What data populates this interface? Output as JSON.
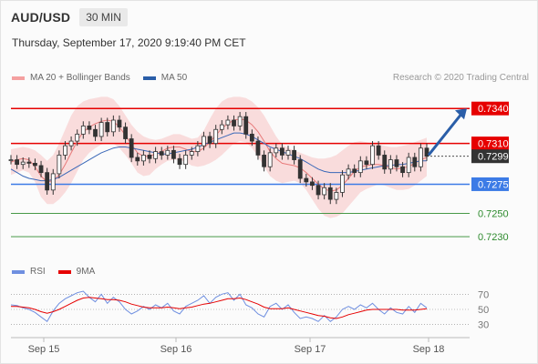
{
  "header": {
    "pair": "AUD/USD",
    "timeframe": "30 MIN"
  },
  "datetime": "Thursday, September 17, 2020 9:19:40 PM CET",
  "credit": "Research © 2020 Trading Central",
  "colors": {
    "bb_band": "#f8d6d6",
    "ma20": "#e87a7a",
    "ma50": "#3a68b8",
    "candle": "#333333",
    "resistance": "#e60000",
    "support": "#3c7be6",
    "target_green": "#2e8b2e",
    "arrow": "#2a5ea8",
    "rsi": "#6f8fe0",
    "rsi_ma": "#e60000"
  },
  "chart_data": [
    {
      "type": "candlestick",
      "title": "AUD/USD 30 MIN",
      "legend": [
        "MA 20 + Bollinger Bands",
        "MA 50"
      ],
      "x_ticks": [
        "Sep 15",
        "Sep 16",
        "Sep 17",
        "Sep 18"
      ],
      "ylim": [
        0.7216,
        0.7355
      ],
      "levels": [
        {
          "label": "0.7340",
          "value": 0.734,
          "kind": "resistance"
        },
        {
          "label": "0.7310",
          "value": 0.731,
          "kind": "resistance"
        },
        {
          "label": "0.7299",
          "value": 0.7299,
          "kind": "last_price"
        },
        {
          "label": "0.7275",
          "value": 0.7275,
          "kind": "support"
        },
        {
          "label": "0.7250",
          "value": 0.725,
          "kind": "target"
        },
        {
          "label": "0.7230",
          "value": 0.723,
          "kind": "target"
        }
      ],
      "arrow": {
        "from": 0.73,
        "to": 0.734,
        "direction": "up"
      },
      "series": [
        {
          "name": "MA 20 + Bollinger Bands",
          "values": [
            0.7294,
            0.7296,
            0.7297,
            0.7296,
            0.729,
            0.7282,
            0.7277,
            0.7278,
            0.7283,
            0.7292,
            0.7302,
            0.7312,
            0.732,
            0.7324,
            0.7327,
            0.7329,
            0.733,
            0.7329,
            0.7324,
            0.7317,
            0.7309,
            0.7302,
            0.7299,
            0.7299,
            0.7301,
            0.7303,
            0.7306,
            0.7307,
            0.7307,
            0.7305,
            0.7303,
            0.7303,
            0.7306,
            0.7311,
            0.7317,
            0.7323,
            0.7327,
            0.733,
            0.7331,
            0.733,
            0.7326,
            0.732,
            0.7312,
            0.7303,
            0.7297,
            0.7293,
            0.7292,
            0.7291,
            0.7289,
            0.7285,
            0.728,
            0.7275,
            0.7271,
            0.7269,
            0.727,
            0.7274,
            0.728,
            0.7286,
            0.729,
            0.7291,
            0.7292,
            0.7292,
            0.7291,
            0.7289,
            0.7288,
            0.7289,
            0.729,
            0.7293,
            0.7296,
            0.7298
          ]
        },
        {
          "name": "MA 50",
          "values": [
            0.7288,
            0.7285,
            0.7282,
            0.728,
            0.7279,
            0.7278,
            0.7278,
            0.7279,
            0.7281,
            0.7284,
            0.7287,
            0.729,
            0.7293,
            0.7296,
            0.7299,
            0.7302,
            0.7304,
            0.7306,
            0.7307,
            0.7307,
            0.7306,
            0.7305,
            0.7304,
            0.7303,
            0.7302,
            0.7301,
            0.7301,
            0.7302,
            0.7303,
            0.7304,
            0.7305,
            0.7307,
            0.7309,
            0.7311,
            0.7313,
            0.7315,
            0.7317,
            0.7319,
            0.7319,
            0.7318,
            0.7316,
            0.7313,
            0.731,
            0.7307,
            0.7305,
            0.7303,
            0.7301,
            0.7299,
            0.7297,
            0.7294,
            0.7291,
            0.7288,
            0.7286,
            0.7285,
            0.7285,
            0.7285,
            0.7285,
            0.7286,
            0.7287,
            0.7288,
            0.7289,
            0.729,
            0.7291,
            0.7291,
            0.7292,
            0.7292,
            0.7293,
            0.7294,
            0.7295,
            0.7295
          ]
        },
        {
          "name": "Bollinger Upper",
          "values": [
            0.7305,
            0.7306,
            0.7307,
            0.7306,
            0.7304,
            0.73,
            0.7295,
            0.73,
            0.731,
            0.7322,
            0.7334,
            0.7342,
            0.7346,
            0.7348,
            0.7349,
            0.735,
            0.735,
            0.7348,
            0.7342,
            0.7334,
            0.7326,
            0.732,
            0.7316,
            0.7314,
            0.7313,
            0.7314,
            0.7316,
            0.7318,
            0.7318,
            0.7316,
            0.7314,
            0.7315,
            0.7321,
            0.7331,
            0.734,
            0.7346,
            0.7349,
            0.735,
            0.735,
            0.7349,
            0.7346,
            0.7341,
            0.7334,
            0.7325,
            0.7316,
            0.7309,
            0.7306,
            0.7304,
            0.7302,
            0.73,
            0.7298,
            0.7297,
            0.7297,
            0.7298,
            0.73,
            0.7304,
            0.7308,
            0.7311,
            0.7312,
            0.7311,
            0.731,
            0.7309,
            0.7308,
            0.7307,
            0.7307,
            0.7308,
            0.7309,
            0.7311,
            0.7313,
            0.7315
          ]
        },
        {
          "name": "Bollinger Lower",
          "values": [
            0.7283,
            0.7285,
            0.7287,
            0.7285,
            0.7277,
            0.7264,
            0.7258,
            0.7258,
            0.7262,
            0.7268,
            0.7276,
            0.7286,
            0.7296,
            0.7302,
            0.7306,
            0.7309,
            0.731,
            0.731,
            0.7306,
            0.73,
            0.7293,
            0.7285,
            0.7282,
            0.7283,
            0.7288,
            0.7292,
            0.7295,
            0.7296,
            0.7296,
            0.7294,
            0.7291,
            0.729,
            0.7291,
            0.7293,
            0.7296,
            0.73,
            0.7305,
            0.731,
            0.7312,
            0.7311,
            0.7306,
            0.7299,
            0.729,
            0.7282,
            0.7278,
            0.7276,
            0.7277,
            0.7278,
            0.7276,
            0.727,
            0.7262,
            0.7254,
            0.7248,
            0.7246,
            0.7247,
            0.725,
            0.7256,
            0.7262,
            0.7268,
            0.7271,
            0.7273,
            0.7275,
            0.7274,
            0.7272,
            0.727,
            0.727,
            0.7271,
            0.7274,
            0.7278,
            0.7282
          ]
        },
        {
          "name": "Price",
          "values": [
            0.7296,
            0.7292,
            0.7294,
            0.7293,
            0.7291,
            0.7285,
            0.727,
            0.7284,
            0.73,
            0.7308,
            0.7312,
            0.7318,
            0.7325,
            0.7322,
            0.7316,
            0.7328,
            0.732,
            0.733,
            0.7324,
            0.7314,
            0.7298,
            0.7295,
            0.73,
            0.7297,
            0.7303,
            0.73,
            0.7304,
            0.7297,
            0.7292,
            0.73,
            0.7303,
            0.7308,
            0.7316,
            0.731,
            0.7322,
            0.7326,
            0.733,
            0.7325,
            0.7333,
            0.7318,
            0.7312,
            0.73,
            0.729,
            0.7302,
            0.7306,
            0.73,
            0.7304,
            0.7296,
            0.728,
            0.7277,
            0.7274,
            0.7266,
            0.7272,
            0.7262,
            0.7268,
            0.7283,
            0.7288,
            0.7285,
            0.7295,
            0.7292,
            0.7308,
            0.73,
            0.7288,
            0.7296,
            0.729,
            0.7285,
            0.7298,
            0.729,
            0.7306,
            0.7299
          ]
        }
      ]
    },
    {
      "type": "line",
      "title": "RSI",
      "legend": [
        "RSI",
        "9MA"
      ],
      "y_ticks": [
        "70",
        "50",
        "30"
      ],
      "ylim": [
        20,
        80
      ],
      "series": [
        {
          "name": "RSI",
          "values": [
            56,
            55,
            52,
            50,
            46,
            40,
            34,
            48,
            58,
            64,
            68,
            72,
            74,
            66,
            60,
            70,
            58,
            66,
            60,
            50,
            44,
            48,
            54,
            50,
            56,
            52,
            58,
            48,
            44,
            54,
            58,
            62,
            68,
            58,
            66,
            70,
            72,
            62,
            70,
            56,
            52,
            44,
            40,
            54,
            58,
            50,
            56,
            46,
            38,
            40,
            38,
            34,
            42,
            34,
            40,
            50,
            54,
            50,
            56,
            52,
            58,
            50,
            44,
            52,
            46,
            44,
            54,
            46,
            58,
            52
          ]
        },
        {
          "name": "9MA",
          "values": [
            54,
            54,
            53,
            52,
            50,
            47,
            45,
            47,
            50,
            54,
            58,
            62,
            65,
            66,
            65,
            64,
            63,
            63,
            62,
            60,
            57,
            55,
            53,
            52,
            52,
            52,
            53,
            52,
            51,
            52,
            53,
            55,
            57,
            58,
            60,
            62,
            64,
            64,
            65,
            63,
            60,
            57,
            53,
            51,
            51,
            51,
            52,
            50,
            48,
            46,
            44,
            42,
            41,
            39,
            38,
            40,
            43,
            45,
            47,
            49,
            50,
            50,
            50,
            50,
            50,
            49,
            49,
            49,
            50,
            51
          ]
        }
      ]
    }
  ]
}
